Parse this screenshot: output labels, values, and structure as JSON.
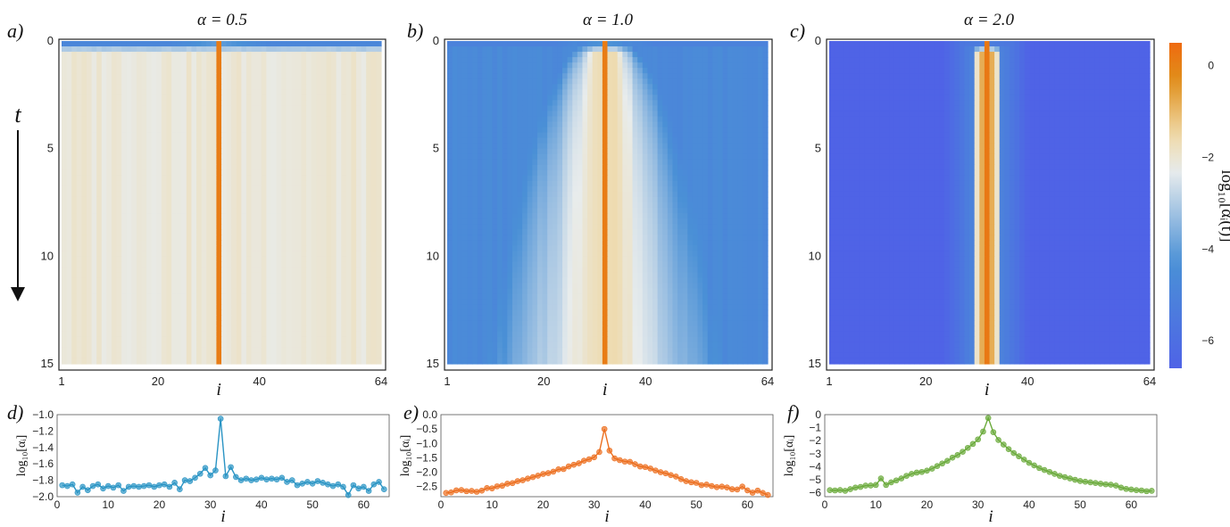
{
  "figure": {
    "time_label": "t",
    "colorbar": {
      "label": "log₁₀[αᵢ(t)]",
      "ticks": [
        0,
        -2,
        -4,
        -6
      ],
      "tick_labels": [
        "0",
        "−2",
        "−4",
        "−6"
      ],
      "range": [
        -6.6,
        0.5
      ],
      "colors": [
        "#4f63e6",
        "#4a90d6",
        "#e8ecec",
        "#efd9a8",
        "#e08e1a",
        "#ef6a10"
      ]
    }
  },
  "chart_data": [
    {
      "panel": "a)",
      "type": "heatmap",
      "title": "α = 0.5",
      "xlabel": "i",
      "ylabel": "t",
      "x_ticks": [
        1,
        20,
        40,
        64
      ],
      "x_tick_labels": [
        "1",
        "20",
        "40",
        "64"
      ],
      "y_ticks": [
        0,
        5,
        10,
        15
      ],
      "y_tick_labels": [
        "0",
        "5",
        "10",
        "15"
      ],
      "xlim": [
        1,
        64
      ],
      "ylim": [
        0,
        15
      ],
      "center_site": 32,
      "approx_profile": {
        "center": 0.1,
        "background": -2.0,
        "decay_per_site": 0.0,
        "t0_edge": -4.8
      }
    },
    {
      "panel": "b)",
      "type": "heatmap",
      "title": "α = 1.0",
      "xlabel": "i",
      "ylabel": "t",
      "x_ticks": [
        1,
        20,
        40,
        64
      ],
      "x_tick_labels": [
        "1",
        "20",
        "40",
        "64"
      ],
      "y_ticks": [
        0,
        5,
        10,
        15
      ],
      "y_tick_labels": [
        "0",
        "5",
        "10",
        "15"
      ],
      "xlim": [
        1,
        64
      ],
      "ylim": [
        0,
        15
      ],
      "center_site": 32,
      "approx_profile": {
        "center": 0.1,
        "background": -2.0,
        "decay_per_site": 0.09,
        "t0_edge": -5.0
      }
    },
    {
      "panel": "c)",
      "type": "heatmap",
      "title": "α = 2.0",
      "xlabel": "i",
      "ylabel": "t",
      "x_ticks": [
        1,
        20,
        40,
        64
      ],
      "x_tick_labels": [
        "1",
        "20",
        "40",
        "64"
      ],
      "y_ticks": [
        0,
        5,
        10,
        15
      ],
      "y_tick_labels": [
        "0",
        "5",
        "10",
        "15"
      ],
      "xlim": [
        1,
        64
      ],
      "ylim": [
        0,
        15
      ],
      "center_site": 32,
      "approx_profile": {
        "center": 0.2,
        "background": -2.0,
        "decay_per_site": 0.6,
        "t0_edge": -6.0
      }
    },
    {
      "panel": "d)",
      "type": "line",
      "xlabel": "i",
      "ylabel": "log₁₀[αᵢ]",
      "color": "#2a94c4",
      "ylim": [
        -2.0,
        -1.0
      ],
      "y_ticks": [
        -2.0,
        -1.8,
        -1.6,
        -1.4,
        -1.2,
        -1.0
      ],
      "y_tick_labels": [
        "−2.0",
        "−1.8",
        "−1.6",
        "−1.4",
        "−1.2",
        "−1.0"
      ],
      "x_ticks": [
        0,
        10,
        20,
        30,
        40,
        50,
        60
      ],
      "x_tick_labels": [
        "0",
        "10",
        "20",
        "30",
        "40",
        "50",
        "60"
      ],
      "xlim": [
        0,
        65
      ],
      "values": [
        -1.86,
        -1.87,
        -1.85,
        -1.95,
        -1.88,
        -1.92,
        -1.87,
        -1.85,
        -1.9,
        -1.87,
        -1.89,
        -1.86,
        -1.93,
        -1.88,
        -1.87,
        -1.88,
        -1.87,
        -1.86,
        -1.88,
        -1.86,
        -1.85,
        -1.88,
        -1.83,
        -1.91,
        -1.8,
        -1.81,
        -1.77,
        -1.72,
        -1.65,
        -1.74,
        -1.68,
        -1.05,
        -1.75,
        -1.64,
        -1.76,
        -1.8,
        -1.78,
        -1.8,
        -1.79,
        -1.77,
        -1.79,
        -1.78,
        -1.79,
        -1.77,
        -1.82,
        -1.8,
        -1.86,
        -1.84,
        -1.82,
        -1.84,
        -1.81,
        -1.83,
        -1.85,
        -1.87,
        -1.85,
        -1.88,
        -1.98,
        -1.86,
        -1.9,
        -1.88,
        -1.93,
        -1.85,
        -1.82,
        -1.91
      ]
    },
    {
      "panel": "e)",
      "type": "line",
      "xlabel": "i",
      "ylabel": "log₁₀[αᵢ]",
      "color": "#ec6e1e",
      "ylim": [
        -2.85,
        0.0
      ],
      "y_ticks": [
        0.0,
        -0.5,
        -1.0,
        -1.5,
        -2.0,
        -2.5
      ],
      "y_tick_labels": [
        "0.0",
        "−0.5",
        "−1.0",
        "−1.5",
        "−2.0",
        "−2.5"
      ],
      "x_ticks": [
        0,
        10,
        20,
        30,
        40,
        50,
        60
      ],
      "x_tick_labels": [
        "0",
        "10",
        "20",
        "30",
        "40",
        "50",
        "60"
      ],
      "xlim": [
        0,
        65
      ],
      "values": [
        -2.72,
        -2.7,
        -2.63,
        -2.62,
        -2.66,
        -2.65,
        -2.68,
        -2.64,
        -2.55,
        -2.56,
        -2.49,
        -2.47,
        -2.4,
        -2.38,
        -2.31,
        -2.28,
        -2.22,
        -2.17,
        -2.12,
        -2.06,
        -2.03,
        -1.98,
        -1.9,
        -1.89,
        -1.8,
        -1.74,
        -1.69,
        -1.6,
        -1.55,
        -1.48,
        -1.3,
        -0.5,
        -1.25,
        -1.52,
        -1.58,
        -1.63,
        -1.64,
        -1.72,
        -1.8,
        -1.82,
        -1.87,
        -1.94,
        -2.0,
        -2.04,
        -2.1,
        -2.15,
        -2.24,
        -2.31,
        -2.35,
        -2.37,
        -2.45,
        -2.43,
        -2.48,
        -2.52,
        -2.5,
        -2.53,
        -2.59,
        -2.6,
        -2.5,
        -2.63,
        -2.71,
        -2.64,
        -2.72,
        -2.79
      ]
    },
    {
      "panel": "f)",
      "type": "line",
      "xlabel": "i",
      "ylabel": "log₁₀[αᵢ]",
      "color": "#6aaa3a",
      "ylim": [
        -6.3,
        0.0
      ],
      "y_ticks": [
        0,
        -1,
        -2,
        -3,
        -4,
        -5,
        -6
      ],
      "y_tick_labels": [
        "0",
        "−1",
        "−2",
        "−3",
        "−4",
        "−5",
        "−6"
      ],
      "x_ticks": [
        0,
        10,
        20,
        30,
        40,
        50,
        60
      ],
      "x_tick_labels": [
        "0",
        "10",
        "20",
        "30",
        "40",
        "50",
        "60"
      ],
      "xlim": [
        0,
        65
      ],
      "values": [
        -5.8,
        -5.82,
        -5.79,
        -5.85,
        -5.72,
        -5.6,
        -5.55,
        -5.45,
        -5.44,
        -5.4,
        -4.9,
        -5.4,
        -5.2,
        -5.05,
        -4.9,
        -4.7,
        -4.55,
        -4.45,
        -4.4,
        -4.3,
        -4.15,
        -3.95,
        -3.75,
        -3.55,
        -3.3,
        -3.1,
        -2.85,
        -2.55,
        -2.25,
        -1.9,
        -1.3,
        -0.25,
        -1.35,
        -1.95,
        -2.3,
        -2.65,
        -2.95,
        -3.2,
        -3.45,
        -3.7,
        -3.9,
        -4.1,
        -4.25,
        -4.4,
        -4.55,
        -4.7,
        -4.8,
        -4.9,
        -5.0,
        -5.1,
        -5.15,
        -5.2,
        -5.25,
        -5.3,
        -5.35,
        -5.38,
        -5.45,
        -5.6,
        -5.7,
        -5.75,
        -5.8,
        -5.82,
        -5.88,
        -5.85
      ]
    }
  ]
}
